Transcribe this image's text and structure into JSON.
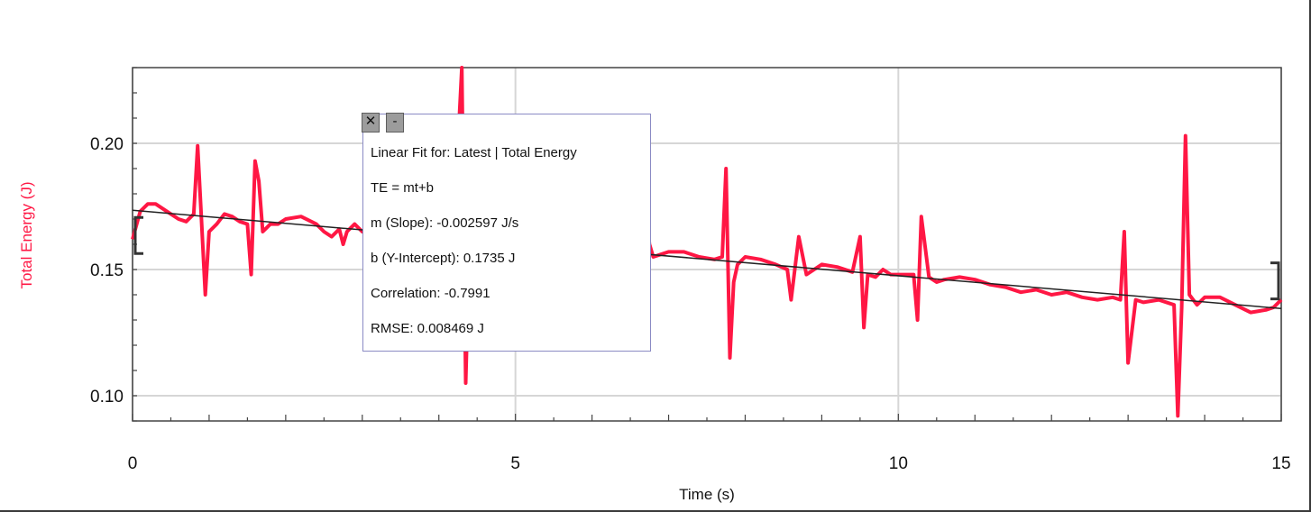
{
  "chart_data": {
    "type": "line",
    "xlabel": "Time (s)",
    "ylabel": "Total Energy (J)",
    "xlim": [
      0,
      15
    ],
    "ylim": [
      0.09,
      0.23
    ],
    "x_ticks": [
      "0",
      "5",
      "10",
      "15"
    ],
    "y_ticks": [
      "0.10",
      "0.15",
      "0.20"
    ],
    "grid": true,
    "series": [
      {
        "color": "#ff1744",
        "x": [
          0.0,
          0.1,
          0.2,
          0.3,
          0.4,
          0.5,
          0.6,
          0.7,
          0.8,
          0.85,
          0.9,
          0.95,
          1.0,
          1.1,
          1.2,
          1.3,
          1.4,
          1.5,
          1.55,
          1.6,
          1.65,
          1.7,
          1.8,
          1.9,
          2.0,
          2.2,
          2.4,
          2.5,
          2.6,
          2.7,
          2.75,
          2.8,
          2.9,
          3.0,
          3.1,
          3.2,
          3.3,
          3.4,
          3.5,
          3.6,
          3.7,
          3.8,
          3.9,
          4.0,
          4.1,
          4.2,
          4.25,
          4.3,
          4.35,
          4.4,
          4.5,
          4.6,
          4.7,
          4.8,
          4.9,
          5.0,
          5.2,
          5.4,
          5.6,
          5.8,
          6.0,
          6.2,
          6.4,
          6.6,
          6.7,
          6.75,
          6.8,
          6.9,
          7.0,
          7.2,
          7.4,
          7.6,
          7.7,
          7.75,
          7.8,
          7.85,
          7.9,
          8.0,
          8.2,
          8.4,
          8.55,
          8.6,
          8.7,
          8.8,
          8.9,
          9.0,
          9.2,
          9.4,
          9.5,
          9.55,
          9.6,
          9.7,
          9.8,
          9.9,
          10.0,
          10.2,
          10.25,
          10.3,
          10.4,
          10.5,
          10.6,
          10.8,
          11.0,
          11.2,
          11.4,
          11.6,
          11.8,
          12.0,
          12.2,
          12.4,
          12.6,
          12.8,
          12.9,
          12.95,
          13.0,
          13.1,
          13.2,
          13.4,
          13.6,
          13.65,
          13.7,
          13.75,
          13.8,
          13.9,
          14.0,
          14.2,
          14.4,
          14.6,
          14.8,
          14.9,
          15.0
        ],
        "y": [
          0.162,
          0.173,
          0.176,
          0.176,
          0.174,
          0.172,
          0.17,
          0.169,
          0.172,
          0.199,
          0.17,
          0.14,
          0.165,
          0.168,
          0.172,
          0.171,
          0.169,
          0.168,
          0.148,
          0.193,
          0.185,
          0.165,
          0.168,
          0.168,
          0.17,
          0.171,
          0.168,
          0.165,
          0.163,
          0.166,
          0.16,
          0.165,
          0.168,
          0.165,
          0.168,
          0.165,
          0.166,
          0.165,
          0.164,
          0.162,
          0.163,
          0.162,
          0.161,
          0.16,
          0.162,
          0.162,
          0.2,
          0.23,
          0.105,
          0.162,
          0.162,
          0.16,
          0.161,
          0.16,
          0.159,
          0.158,
          0.158,
          0.157,
          0.158,
          0.158,
          0.157,
          0.156,
          0.157,
          0.156,
          0.175,
          0.16,
          0.155,
          0.156,
          0.157,
          0.157,
          0.155,
          0.154,
          0.155,
          0.19,
          0.115,
          0.145,
          0.152,
          0.155,
          0.154,
          0.152,
          0.15,
          0.138,
          0.163,
          0.148,
          0.15,
          0.152,
          0.151,
          0.149,
          0.163,
          0.127,
          0.148,
          0.147,
          0.15,
          0.148,
          0.148,
          0.148,
          0.13,
          0.171,
          0.147,
          0.145,
          0.146,
          0.147,
          0.146,
          0.144,
          0.143,
          0.141,
          0.142,
          0.14,
          0.141,
          0.139,
          0.138,
          0.139,
          0.138,
          0.165,
          0.113,
          0.138,
          0.137,
          0.138,
          0.136,
          0.092,
          0.135,
          0.203,
          0.14,
          0.136,
          0.139,
          0.139,
          0.136,
          0.133,
          0.134,
          0.135,
          0.138
        ]
      }
    ],
    "fit_line": {
      "slope": -0.002597,
      "intercept": 0.1735,
      "color": "#222222"
    },
    "selection_brackets": [
      0,
      15
    ]
  },
  "fit_box": {
    "close_glyph": "✕",
    "minimize_glyph": "-",
    "lines": [
      "Linear Fit for: Latest | Total Energy",
      "TE = mt+b",
      "m (Slope): -0.002597 J/s",
      "b (Y-Intercept): 0.1735 J",
      "Correlation: -0.7991",
      "RMSE: 0.008469 J"
    ]
  }
}
